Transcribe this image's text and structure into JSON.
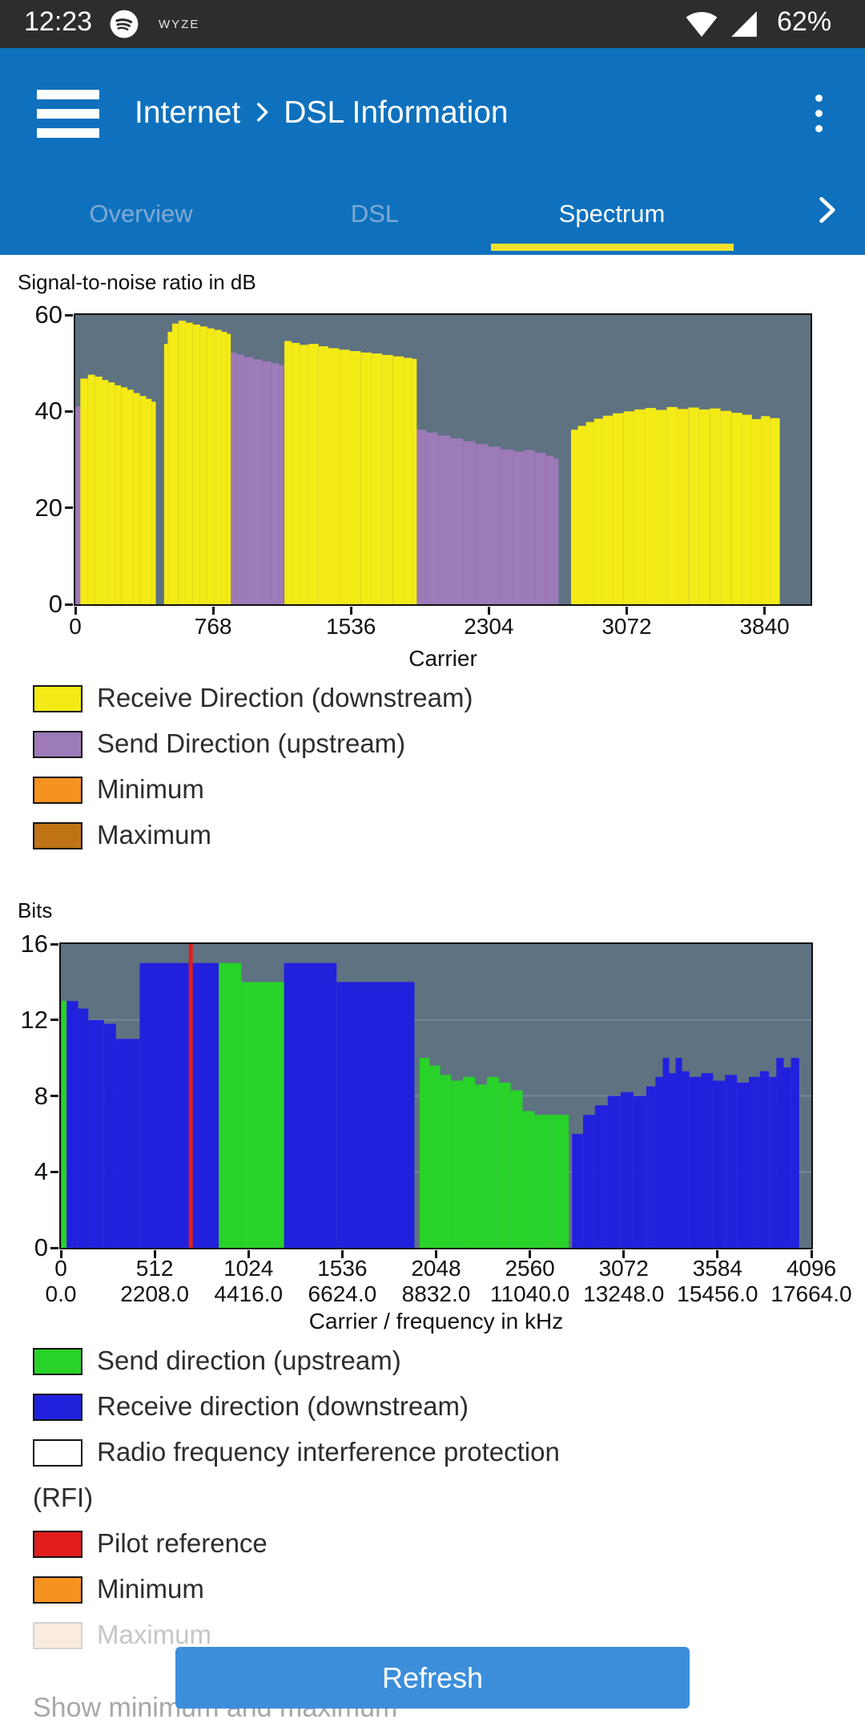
{
  "status_bar": {
    "time": "12:23",
    "app_icon": "spotify",
    "carrier_label": "WYZE",
    "battery": "62%"
  },
  "header": {
    "breadcrumb_root": "Internet",
    "breadcrumb_page": "DSL Information"
  },
  "tabs": [
    {
      "label": "Overview",
      "active": false
    },
    {
      "label": "DSL",
      "active": false
    },
    {
      "label": "Spectrum",
      "active": true
    }
  ],
  "footer": {
    "refresh": "Refresh",
    "show_minmax": "Show minimum and maximum"
  },
  "colors": {
    "status_bar": "#2d2d2d",
    "header_blue": "#0f71bd",
    "tab_inactive": "#7fa9d4",
    "active_tab_underline": "#f0e22e",
    "plot_background": "#5e7282",
    "refresh_button": "#3c8edb"
  },
  "chart_data": [
    {
      "type": "area",
      "title": "Signal-to-noise ratio in dB",
      "xlabel": "Carrier",
      "ylabel": "",
      "xlim": [
        0,
        4096
      ],
      "ylim": [
        0,
        60
      ],
      "xticks": [
        0,
        768,
        1536,
        2304,
        3072,
        3840
      ],
      "yticks": [
        0,
        20,
        40,
        60
      ],
      "plot_bg": "#5e7282",
      "series": [
        {
          "name": "Send Direction (upstream)",
          "color": "#9d7ab8",
          "segments": [
            [
              2,
              30,
              41
            ],
            [
              862,
              900,
              52.2
            ],
            [
              900,
              940,
              51.8
            ],
            [
              940,
              990,
              51.3
            ],
            [
              990,
              1040,
              50.8
            ],
            [
              1040,
              1090,
              50.4
            ],
            [
              1090,
              1135,
              50
            ],
            [
              1135,
              1162,
              49.6
            ],
            [
              1900,
              1955,
              36.2
            ],
            [
              1955,
              2020,
              35.6
            ],
            [
              2020,
              2090,
              35
            ],
            [
              2090,
              2160,
              34.4
            ],
            [
              2160,
              2230,
              33.8
            ],
            [
              2230,
              2300,
              33.2
            ],
            [
              2300,
              2370,
              32.7
            ],
            [
              2370,
              2440,
              32.1
            ],
            [
              2440,
              2500,
              31.7
            ],
            [
              2500,
              2560,
              32
            ],
            [
              2560,
              2620,
              31.4
            ],
            [
              2620,
              2665,
              30.8
            ],
            [
              2665,
              2692,
              30.2
            ]
          ]
        },
        {
          "name": "Receive Direction (downstream)",
          "color": "#f4ea15",
          "segments": [
            [
              28,
              70,
              46.8
            ],
            [
              70,
              110,
              47.6
            ],
            [
              110,
              150,
              47.2
            ],
            [
              150,
              185,
              46.5
            ],
            [
              185,
              220,
              46
            ],
            [
              220,
              255,
              45.4
            ],
            [
              255,
              290,
              45
            ],
            [
              290,
              325,
              44.5
            ],
            [
              325,
              360,
              43.8
            ],
            [
              360,
              395,
              43.2
            ],
            [
              395,
              425,
              42.6
            ],
            [
              425,
              448,
              42
            ],
            [
              495,
              515,
              54
            ],
            [
              515,
              540,
              56.5
            ],
            [
              540,
              575,
              58.2
            ],
            [
              575,
              615,
              58.8
            ],
            [
              615,
              655,
              58.4
            ],
            [
              655,
              695,
              58
            ],
            [
              695,
              735,
              57.6
            ],
            [
              735,
              775,
              57.2
            ],
            [
              775,
              815,
              56.9
            ],
            [
              815,
              845,
              56.5
            ],
            [
              845,
              866,
              56.1
            ],
            [
              1165,
              1205,
              54.6
            ],
            [
              1205,
              1250,
              54.2
            ],
            [
              1250,
              1300,
              53.8
            ],
            [
              1300,
              1355,
              54
            ],
            [
              1355,
              1410,
              53.5
            ],
            [
              1410,
              1470,
              53.1
            ],
            [
              1470,
              1530,
              52.8
            ],
            [
              1530,
              1590,
              52.5
            ],
            [
              1590,
              1650,
              52.2
            ],
            [
              1650,
              1710,
              52
            ],
            [
              1710,
              1770,
              51.7
            ],
            [
              1770,
              1830,
              51.4
            ],
            [
              1830,
              1875,
              51.1
            ],
            [
              1875,
              1902,
              50.9
            ],
            [
              2762,
              2800,
              36.2
            ],
            [
              2800,
              2845,
              37
            ],
            [
              2845,
              2890,
              37.8
            ],
            [
              2890,
              2940,
              38.5
            ],
            [
              2940,
              2995,
              39.1
            ],
            [
              2995,
              3055,
              39.6
            ],
            [
              3055,
              3115,
              40
            ],
            [
              3115,
              3175,
              40.4
            ],
            [
              3175,
              3235,
              40.7
            ],
            [
              3235,
              3295,
              40.3
            ],
            [
              3295,
              3355,
              40.9
            ],
            [
              3355,
              3415,
              40.5
            ],
            [
              3415,
              3475,
              40.8
            ],
            [
              3475,
              3535,
              40.4
            ],
            [
              3535,
              3595,
              40.6
            ],
            [
              3595,
              3655,
              40.1
            ],
            [
              3655,
              3715,
              39.7
            ],
            [
              3715,
              3770,
              39.3
            ],
            [
              3770,
              3820,
              38.4
            ],
            [
              3820,
              3870,
              39
            ],
            [
              3870,
              3925,
              38.6
            ]
          ]
        }
      ],
      "legend": [
        {
          "label": "Receive Direction (downstream)",
          "color": "#f4ea15"
        },
        {
          "label": "Send Direction (upstream)",
          "color": "#9d7ab8"
        },
        {
          "label": "Minimum",
          "color": "#f6921e"
        },
        {
          "label": "Maximum",
          "color": "#bf7315"
        }
      ]
    },
    {
      "type": "area",
      "title": "Bits",
      "xlabel": "Carrier / frequency in kHz",
      "ylabel": "",
      "xlim": [
        0,
        4096
      ],
      "ylim": [
        0,
        16
      ],
      "xticks": [
        0,
        512,
        1024,
        1536,
        2048,
        2560,
        3072,
        3584,
        4096
      ],
      "xticks2": [
        "0.0",
        "2208.0",
        "4416.0",
        "6624.0",
        "8832.0",
        "11040.0",
        "13248.0",
        "15456.0",
        "17664.0"
      ],
      "yticks": [
        0,
        4,
        8,
        12,
        16
      ],
      "gridlines_y": [
        4,
        8,
        12
      ],
      "plot_bg": "#5e7282",
      "pilot": {
        "x": 709,
        "color": "#e21d1d",
        "label": "Pilot reference"
      },
      "series": [
        {
          "name": "Receive direction (downstream)",
          "color": "#2121dd",
          "segments": [
            [
              32,
              95,
              13
            ],
            [
              95,
              150,
              12.6
            ],
            [
              150,
              235,
              12
            ],
            [
              235,
              300,
              11.8
            ],
            [
              300,
              430,
              11
            ],
            [
              430,
              862,
              15
            ],
            [
              1218,
              1505,
              15
            ],
            [
              1505,
              1930,
              14
            ],
            [
              2790,
              2850,
              6
            ],
            [
              2850,
              2915,
              7
            ],
            [
              2915,
              2985,
              7.5
            ],
            [
              2985,
              3055,
              8
            ],
            [
              3055,
              3125,
              8.2
            ],
            [
              3125,
              3195,
              8
            ],
            [
              3195,
              3245,
              8.5
            ],
            [
              3245,
              3285,
              9
            ],
            [
              3285,
              3320,
              10
            ],
            [
              3320,
              3355,
              9.2
            ],
            [
              3355,
              3390,
              10
            ],
            [
              3390,
              3430,
              9.3
            ],
            [
              3430,
              3495,
              9
            ],
            [
              3495,
              3560,
              9.2
            ],
            [
              3560,
              3625,
              8.8
            ],
            [
              3625,
              3690,
              9.1
            ],
            [
              3690,
              3755,
              8.7
            ],
            [
              3755,
              3815,
              9
            ],
            [
              3815,
              3865,
              9.3
            ],
            [
              3865,
              3905,
              9
            ],
            [
              3905,
              3945,
              10
            ],
            [
              3945,
              3985,
              9.5
            ],
            [
              3985,
              4030,
              10
            ]
          ]
        },
        {
          "name": "Send direction (upstream)",
          "color": "#29d229",
          "segments": [
            [
              4,
              30,
              13
            ],
            [
              862,
              985,
              15
            ],
            [
              985,
              1218,
              14
            ],
            [
              1958,
              2012,
              10
            ],
            [
              2012,
              2070,
              9.6
            ],
            [
              2070,
              2130,
              9.1
            ],
            [
              2130,
              2195,
              8.8
            ],
            [
              2195,
              2260,
              9
            ],
            [
              2260,
              2325,
              8.6
            ],
            [
              2325,
              2390,
              9
            ],
            [
              2390,
              2455,
              8.7
            ],
            [
              2455,
              2520,
              8.3
            ],
            [
              2520,
              2585,
              7.2
            ],
            [
              2585,
              2680,
              7
            ],
            [
              2680,
              2772,
              7
            ]
          ]
        }
      ],
      "legend": [
        {
          "label": "Send direction (upstream)",
          "color": "#29d229"
        },
        {
          "label": "Receive direction (downstream)",
          "color": "#2121dd"
        },
        {
          "label": "Radio frequency interference protection (RFI)",
          "color": "#ffffff"
        },
        {
          "label": "Pilot reference",
          "color": "#e21d1d"
        },
        {
          "label": "Minimum",
          "color": "#f6921e"
        },
        {
          "label": "Maximum",
          "color": "#f9ecdc",
          "faded": true
        }
      ]
    }
  ]
}
